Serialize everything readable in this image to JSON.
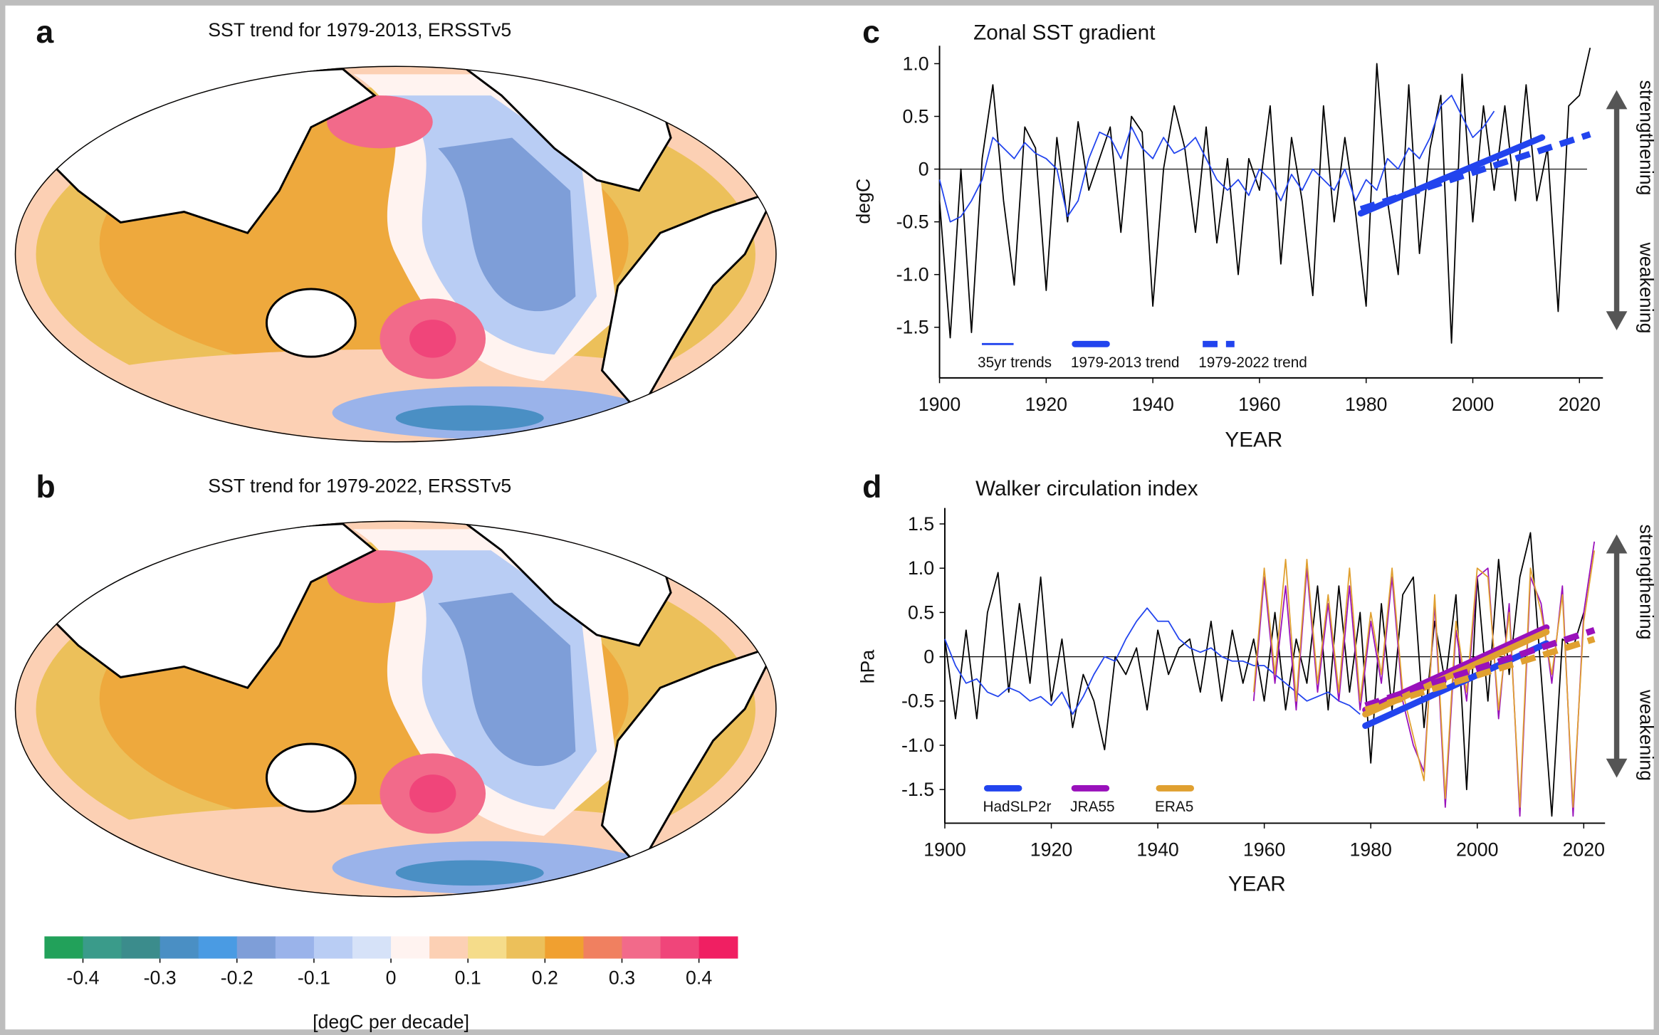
{
  "chart_data": [
    {
      "type": "map",
      "panel_label": "a",
      "title": "SST trend for 1979-2013, ERSSTv5"
    },
    {
      "type": "map",
      "panel_label": "b",
      "title": "SST trend for 1979-2022, ERSSTv5"
    },
    {
      "type": "colorbar",
      "label": "[degC per decade]",
      "xlim": [
        -0.45,
        0.45
      ],
      "colors": [
        "#22a15a",
        "#3a9b8a",
        "#3b8c8c",
        "#4a8fc4",
        "#4a9be3",
        "#7e9ed8",
        "#9ab3ea",
        "#b9cdf4",
        "#d6e2f8",
        "#fff3f0",
        "#fcd0b4",
        "#f5dc8a",
        "#ecc05a",
        "#f0a030",
        "#f08060",
        "#f26a8a",
        "#f0457a",
        "#f01f62"
      ],
      "xticks": [
        -0.4,
        -0.3,
        -0.2,
        -0.1,
        0,
        0.1,
        0.2,
        0.3,
        0.4
      ]
    },
    {
      "type": "line",
      "panel_label": "c",
      "title": "Zonal SST gradient",
      "xlabel": "YEAR",
      "ylabel": "degC",
      "xlim": [
        1900,
        2024.4
      ],
      "ylim": [
        -1.98,
        1.17
      ],
      "xticks": [
        1900,
        1920,
        1940,
        1960,
        1980,
        2000,
        2020
      ],
      "yticks": [
        {
          "value": -1.5,
          "label": "-1.5"
        },
        {
          "value": -1,
          "label": "-1.0"
        },
        -0.5,
        0,
        0.5,
        {
          "value": 1,
          "label": "1.0"
        }
      ],
      "zero_line": true,
      "legend": "bottom-left",
      "annotations": [
        "strengthening",
        "weakening"
      ],
      "series": [
        {
          "color": "#000000",
          "style": "thin",
          "x": [
            1900,
            1902,
            1904,
            1906,
            1908,
            1910,
            1912,
            1914,
            1916,
            1918,
            1920,
            1922,
            1924,
            1926,
            1928,
            1930,
            1932,
            1934,
            1936,
            1938,
            1940,
            1942,
            1944,
            1946,
            1948,
            1950,
            1952,
            1954,
            1956,
            1958,
            1960,
            1962,
            1964,
            1966,
            1968,
            1970,
            1972,
            1974,
            1976,
            1978,
            1980,
            1982,
            1984,
            1986,
            1988,
            1990,
            1992,
            1994,
            1996,
            1998,
            2000,
            2002,
            2004,
            2006,
            2008,
            2010,
            2012,
            2014,
            2016,
            2018,
            2020,
            2022
          ],
          "values": [
            -0.3,
            -1.6,
            0.0,
            -1.55,
            0.1,
            0.8,
            -0.3,
            -1.1,
            0.4,
            0.2,
            -1.15,
            0.3,
            -0.5,
            0.45,
            -0.2,
            0.1,
            0.4,
            -0.6,
            0.5,
            0.35,
            -1.3,
            0.0,
            0.6,
            0.2,
            -0.6,
            0.4,
            -0.7,
            0.1,
            -1.0,
            0.1,
            -0.2,
            0.6,
            -0.9,
            0.3,
            -0.3,
            -1.2,
            0.6,
            -0.5,
            0.3,
            -0.4,
            -1.3,
            1.0,
            -0.3,
            -1.0,
            0.8,
            -0.8,
            0.2,
            0.7,
            -1.65,
            0.9,
            -0.5,
            0.6,
            -0.2,
            0.6,
            -0.3,
            0.8,
            -0.3,
            0.2,
            -1.35,
            0.6,
            0.7,
            1.15
          ]
        },
        {
          "name": "35yr trends",
          "color": "#2244ee",
          "style": "thin",
          "x": [
            1900,
            1902,
            1904,
            1906,
            1908,
            1910,
            1912,
            1914,
            1916,
            1918,
            1920,
            1922,
            1924,
            1926,
            1928,
            1930,
            1932,
            1934,
            1936,
            1938,
            1940,
            1942,
            1944,
            1946,
            1948,
            1950,
            1952,
            1954,
            1956,
            1958,
            1960,
            1962,
            1964,
            1966,
            1968,
            1970,
            1972,
            1974,
            1976,
            1978,
            1980,
            1982,
            1984,
            1986,
            1988,
            1990,
            1992,
            1994,
            1996,
            1998,
            2000,
            2002,
            2004
          ],
          "values": [
            -0.1,
            -0.5,
            -0.45,
            -0.3,
            -0.1,
            0.3,
            0.2,
            0.1,
            0.25,
            0.15,
            0.1,
            0.0,
            -0.45,
            -0.3,
            0.1,
            0.35,
            0.3,
            0.1,
            0.4,
            0.2,
            0.1,
            0.3,
            0.15,
            0.2,
            0.3,
            0.1,
            -0.1,
            -0.2,
            -0.1,
            -0.25,
            0.0,
            -0.1,
            -0.3,
            -0.05,
            -0.2,
            0.0,
            -0.1,
            -0.2,
            0.0,
            -0.3,
            -0.1,
            -0.2,
            0.1,
            0.0,
            0.2,
            0.1,
            0.3,
            0.6,
            0.7,
            0.5,
            0.3,
            0.4,
            0.55
          ]
        },
        {
          "name": "1979-2013 trend",
          "color": "#2244ee",
          "style": "thick",
          "x": [
            1979,
            2013
          ],
          "values": [
            -0.42,
            0.3
          ]
        },
        {
          "name": "1979-2022 trend",
          "color": "#2244ee",
          "style": "dashed",
          "x": [
            1979,
            2022
          ],
          "values": [
            -0.38,
            0.33
          ]
        }
      ]
    },
    {
      "type": "line",
      "panel_label": "d",
      "title": "Walker circulation index",
      "xlabel": "YEAR",
      "ylabel": "hPa",
      "xlim": [
        1900,
        2024
      ],
      "ylim": [
        -1.88,
        1.68
      ],
      "xticks": [
        1900,
        1920,
        1940,
        1960,
        1980,
        2000,
        2020
      ],
      "yticks": [
        -1.5,
        {
          "value": -1,
          "label": "-1.0"
        },
        -0.5,
        0,
        0.5,
        {
          "value": 1,
          "label": "1.0"
        },
        1.5
      ],
      "zero_line": true,
      "legend": "bottom-left",
      "annotations": [
        "strengthening",
        "weakening"
      ],
      "series": [
        {
          "color": "#000000",
          "style": "thin",
          "x": [
            1900,
            1902,
            1904,
            1906,
            1908,
            1910,
            1912,
            1914,
            1916,
            1918,
            1920,
            1922,
            1924,
            1926,
            1928,
            1930,
            1932,
            1934,
            1936,
            1938,
            1940,
            1942,
            1944,
            1946,
            1948,
            1950,
            1952,
            1954,
            1956,
            1958,
            1960,
            1962,
            1964,
            1966,
            1968,
            1970,
            1972,
            1974,
            1976,
            1978,
            1980,
            1982,
            1984,
            1986,
            1988,
            1990,
            1992,
            1994,
            1996,
            1998,
            2000,
            2002,
            2004,
            2006,
            2008,
            2010,
            2012,
            2014,
            2016,
            2018,
            2020
          ],
          "values": [
            0.2,
            -0.7,
            0.3,
            -0.7,
            0.5,
            0.95,
            -0.4,
            0.6,
            -0.3,
            0.9,
            -0.5,
            0.2,
            -0.8,
            -0.2,
            -0.5,
            -1.05,
            0.0,
            -0.2,
            0.1,
            -0.6,
            0.3,
            -0.2,
            0.1,
            0.2,
            -0.4,
            0.4,
            -0.5,
            0.3,
            -0.3,
            0.2,
            -0.5,
            0.5,
            -0.6,
            0.2,
            -0.3,
            0.8,
            -0.6,
            0.8,
            -0.4,
            0.5,
            -1.2,
            0.6,
            -0.6,
            0.7,
            0.9,
            -0.8,
            0.4,
            -0.3,
            0.7,
            -1.5,
            0.9,
            -0.5,
            1.1,
            -0.2,
            0.9,
            1.4,
            -0.2,
            -1.8,
            0.2,
            0.1,
            0.5
          ]
        },
        {
          "color": "#2244ee",
          "style": "thin",
          "x": [
            1900,
            1902,
            1904,
            1906,
            1908,
            1910,
            1912,
            1914,
            1916,
            1918,
            1920,
            1922,
            1924,
            1926,
            1928,
            1930,
            1932,
            1934,
            1936,
            1938,
            1940,
            1942,
            1944,
            1946,
            1948,
            1950,
            1952,
            1954,
            1956,
            1958,
            1960,
            1962,
            1964,
            1966,
            1968,
            1970,
            1972,
            1974,
            1976,
            1978
          ],
          "values": [
            0.2,
            -0.1,
            -0.3,
            -0.25,
            -0.4,
            -0.45,
            -0.35,
            -0.4,
            -0.5,
            -0.45,
            -0.55,
            -0.4,
            -0.65,
            -0.45,
            -0.2,
            0.0,
            -0.05,
            0.2,
            0.4,
            0.55,
            0.4,
            0.4,
            0.2,
            0.1,
            0.05,
            0.1,
            0.0,
            -0.05,
            -0.05,
            -0.1,
            -0.1,
            -0.2,
            -0.3,
            -0.4,
            -0.5,
            -0.45,
            -0.4,
            -0.5,
            -0.55,
            -0.65
          ]
        },
        {
          "color": "#9911bb",
          "style": "thin",
          "x": [
            1958,
            1960,
            1962,
            1964,
            1966,
            1968,
            1970,
            1972,
            1974,
            1976,
            1978,
            1980,
            1982,
            1984,
            1986,
            1988,
            1990,
            1992,
            1994,
            1996,
            1998,
            2000,
            2002,
            2004,
            2006,
            2008,
            2010,
            2012,
            2014,
            2016,
            2018,
            2020,
            2022
          ],
          "values": [
            -0.5,
            0.9,
            -0.3,
            0.8,
            -0.6,
            1.0,
            -0.4,
            0.6,
            -0.5,
            0.8,
            -0.6,
            0.4,
            -0.3,
            0.9,
            -0.5,
            -1.0,
            -1.3,
            0.6,
            -1.7,
            0.3,
            -0.5,
            0.9,
            1.0,
            -0.7,
            0.6,
            -1.8,
            0.9,
            0.6,
            -0.3,
            0.8,
            -1.8,
            0.5,
            1.3
          ]
        },
        {
          "color": "#e0a030",
          "style": "thin",
          "x": [
            1958,
            1960,
            1962,
            1964,
            1966,
            1968,
            1970,
            1972,
            1974,
            1976,
            1978,
            1980,
            1982,
            1984,
            1986,
            1988,
            1990,
            1992,
            1994,
            1996,
            1998,
            2000,
            2002,
            2004,
            2006,
            2008,
            2010,
            2012,
            2014,
            2016,
            2018,
            2020,
            2022
          ],
          "values": [
            -0.4,
            1.0,
            -0.2,
            1.1,
            -0.5,
            1.1,
            -0.3,
            0.7,
            -0.4,
            1.0,
            -0.5,
            0.5,
            -0.2,
            1.0,
            -0.4,
            -0.9,
            -1.4,
            0.7,
            -1.6,
            0.4,
            -0.4,
            1.0,
            0.9,
            -0.6,
            0.5,
            -1.7,
            1.0,
            0.5,
            -0.2,
            0.7,
            -1.7,
            0.4,
            1.2
          ]
        },
        {
          "name": "HadSLP2r",
          "color": "#2244ee",
          "style": "thick",
          "x": [
            1979,
            2013
          ],
          "values": [
            -0.78,
            0.15
          ]
        },
        {
          "name": "JRA55",
          "color": "#9911bb",
          "style": "thick",
          "x": [
            1979,
            2013
          ],
          "values": [
            -0.6,
            0.33
          ]
        },
        {
          "name": "ERA5",
          "color": "#e0a030",
          "style": "thick",
          "x": [
            1979,
            2013
          ],
          "values": [
            -0.65,
            0.28
          ]
        },
        {
          "color": "#9911bb",
          "style": "dashed",
          "x": [
            1979,
            2022
          ],
          "values": [
            -0.55,
            0.3
          ]
        },
        {
          "color": "#e0a030",
          "style": "dashed",
          "x": [
            1979,
            2022
          ],
          "values": [
            -0.6,
            0.2
          ]
        }
      ]
    }
  ]
}
